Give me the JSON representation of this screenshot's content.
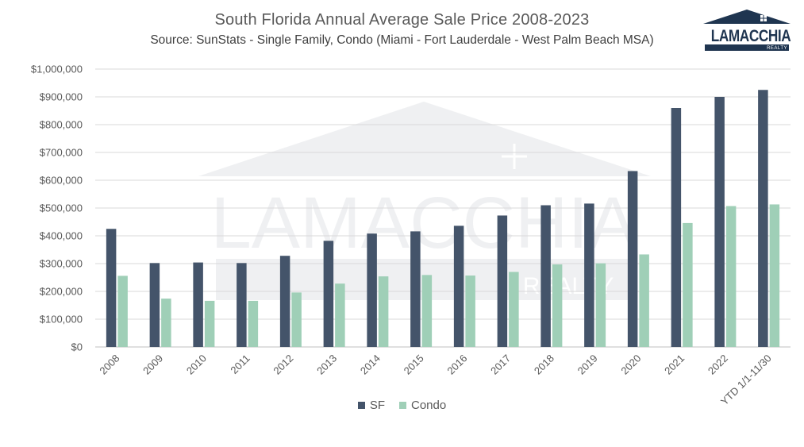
{
  "chart_data": {
    "type": "bar",
    "title": "South Florida Annual Average Sale Price 2008-2023",
    "subtitle": "Source: SunStats - Single Family, Condo (Miami - Fort Lauderdale - West Palm Beach MSA)",
    "categories": [
      "2008",
      "2009",
      "2010",
      "2011",
      "2012",
      "2013",
      "2014",
      "2015",
      "2016",
      "2017",
      "2018",
      "2019",
      "2020",
      "2021",
      "2022",
      "YTD 1/1-11/30"
    ],
    "series": [
      {
        "name": "SF",
        "color": "#44546a",
        "values": [
          425000,
          302000,
          304000,
          302000,
          328000,
          382000,
          408000,
          416000,
          436000,
          473000,
          510000,
          516000,
          633000,
          860000,
          900000,
          925000
        ]
      },
      {
        "name": "Condo",
        "color": "#9fcfb7",
        "values": [
          256000,
          174000,
          166000,
          166000,
          196000,
          228000,
          254000,
          259000,
          257000,
          270000,
          297000,
          301000,
          333000,
          446000,
          507000,
          513000
        ]
      }
    ],
    "ylim": [
      0,
      1000000
    ],
    "yticks": [
      "$0",
      "$100,000",
      "$200,000",
      "$300,000",
      "$400,000",
      "$500,000",
      "$600,000",
      "$700,000",
      "$800,000",
      "$900,000",
      "$1,000,000"
    ],
    "xlabel": "",
    "ylabel": "",
    "grid": true,
    "legend_position": "bottom"
  },
  "logo": {
    "name": "LAMACCHIA",
    "sub": "REALTY"
  },
  "watermark": {
    "name": "LAMACCHIA",
    "sub": "REALTY"
  }
}
